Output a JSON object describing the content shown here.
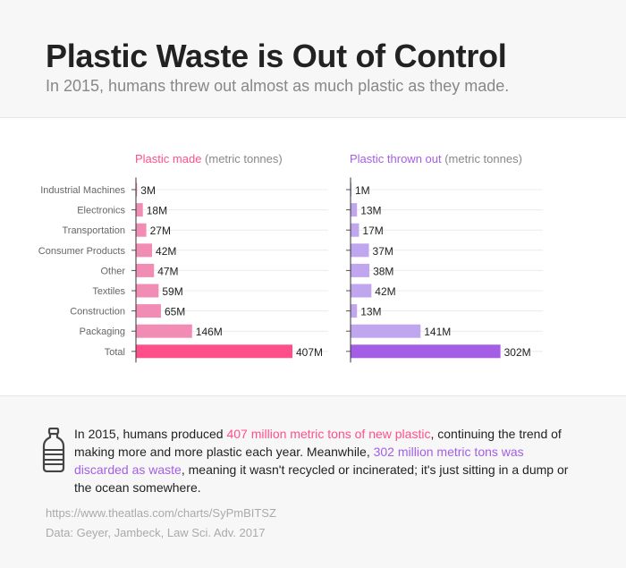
{
  "header": {
    "title": "Plastic Waste is Out of Control",
    "subtitle": "In 2015, humans threw out almost as much plastic as they made."
  },
  "colors": {
    "made_bar": "#f18db5",
    "made_total": "#ff4f8b",
    "thrown_bar": "#c0a6ee",
    "thrown_total": "#a45ee5"
  },
  "chart_data": [
    {
      "type": "bar",
      "orientation": "horizontal",
      "title_highlight": "Plastic made",
      "title_rest": " (metric tonnes)",
      "categories": [
        "Industrial Machines",
        "Electronics",
        "Transportation",
        "Consumer Products",
        "Other",
        "Textiles",
        "Construction",
        "Packaging",
        "Total"
      ],
      "values": [
        3,
        18,
        27,
        42,
        47,
        59,
        65,
        146,
        407
      ],
      "value_labels": [
        "3M",
        "18M",
        "27M",
        "42M",
        "47M",
        "59M",
        "65M",
        "146M",
        "407M"
      ],
      "unit": "M"
    },
    {
      "type": "bar",
      "orientation": "horizontal",
      "title_highlight": "Plastic thrown out",
      "title_rest": " (metric tonnes)",
      "categories": [
        "Industrial Machines",
        "Electronics",
        "Transportation",
        "Consumer Products",
        "Other",
        "Textiles",
        "Construction",
        "Packaging",
        "Total"
      ],
      "values": [
        1,
        13,
        17,
        37,
        38,
        42,
        13,
        141,
        302
      ],
      "value_labels": [
        "1M",
        "13M",
        "17M",
        "37M",
        "38M",
        "42M",
        "13M",
        "141M",
        "302M"
      ],
      "unit": "M"
    }
  ],
  "footer": {
    "t1": "In 2015, humans produced ",
    "h1": "407 million metric tons of new plastic",
    "t2": ", continuing the trend of making more and more plastic each year. Meanwhile, ",
    "h2": "302 million metric tons was discarded as waste",
    "t3": ", meaning it wasn't recycled or incinerated; it's just sitting in a dump or the ocean somewhere.",
    "icon": "bottle-icon"
  },
  "source": {
    "url": "https://www.theatlas.com/charts/SyPmBITSZ",
    "data": "Data: Geyer, Jambeck, Law Sci. Adv. 2017"
  }
}
